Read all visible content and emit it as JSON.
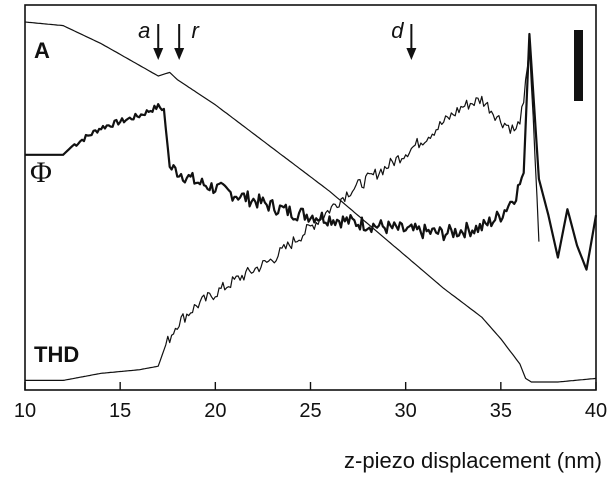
{
  "chart_data": {
    "type": "line",
    "xlabel": "z-piezo displacement (nm)",
    "ylabel": "",
    "xlim": [
      10,
      40
    ],
    "xticks": [
      10,
      15,
      20,
      25,
      30,
      35,
      40
    ],
    "series": [
      {
        "name": "A",
        "x": [
          10,
          12,
          14,
          16,
          17,
          17.6,
          18,
          20,
          22,
          24,
          26,
          28,
          30,
          32,
          34,
          35,
          36,
          36.3,
          36.6,
          38,
          40
        ],
        "y": [
          1.0,
          0.99,
          0.94,
          0.88,
          0.85,
          0.86,
          0.84,
          0.77,
          0.69,
          0.61,
          0.53,
          0.44,
          0.35,
          0.26,
          0.18,
          0.12,
          0.05,
          0.01,
          0.0,
          0.0,
          0.01
        ]
      },
      {
        "name": "Φ",
        "x": [
          10,
          12,
          12.5,
          14,
          16,
          17,
          17.3,
          17.6,
          19,
          21,
          24,
          27,
          30,
          32,
          34,
          35,
          35.8,
          36.2,
          36.5,
          37,
          37.5,
          38,
          38.5,
          39,
          39.5,
          40
        ],
        "y": [
          0.58,
          0.58,
          0.61,
          0.67,
          0.71,
          0.74,
          0.73,
          0.54,
          0.49,
          0.45,
          0.39,
          0.36,
          0.33,
          0.32,
          0.34,
          0.38,
          0.45,
          0.52,
          0.98,
          0.5,
          0.38,
          0.24,
          0.4,
          0.28,
          0.2,
          0.38
        ]
      },
      {
        "name": "THD",
        "x": [
          10,
          12,
          14,
          16,
          17,
          17.4,
          18,
          19,
          21,
          23,
          25,
          27,
          29,
          31,
          33,
          34,
          35,
          35.8,
          36.2,
          36.5,
          37
        ],
        "y": [
          0.01,
          0.01,
          0.03,
          0.04,
          0.05,
          0.11,
          0.17,
          0.22,
          0.29,
          0.35,
          0.44,
          0.54,
          0.61,
          0.69,
          0.78,
          0.8,
          0.74,
          0.71,
          0.78,
          0.96,
          0.4
        ]
      }
    ],
    "trace_labels": {
      "a": "A",
      "phi": "Φ",
      "thd": "THD"
    },
    "markers": [
      {
        "label": "a",
        "x": 17.0
      },
      {
        "label": "r",
        "x": 18.1
      },
      {
        "label": "d",
        "x": 30.3
      }
    ],
    "grid": false,
    "legend": "none"
  }
}
